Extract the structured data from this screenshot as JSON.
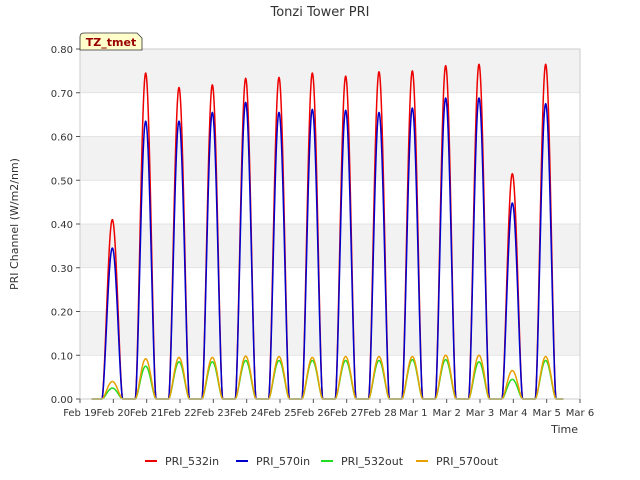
{
  "chart_data": {
    "type": "line",
    "title": "Tonzi Tower PRI",
    "xlabel": "Time",
    "ylabel": "PRI Channel (W/m2/nm)",
    "badge": "TZ_tmet",
    "ylim": [
      0,
      0.8
    ],
    "xlim": [
      0,
      15
    ],
    "y_ticks": [
      0.0,
      0.1,
      0.2,
      0.3,
      0.4,
      0.5,
      0.6,
      0.7,
      0.8
    ],
    "y_tick_labels": [
      "0.00",
      "0.10",
      "0.20",
      "0.30",
      "0.40",
      "0.50",
      "0.60",
      "0.70",
      "0.80"
    ],
    "x_ticks": [
      0,
      1,
      2,
      3,
      4,
      5,
      6,
      7,
      8,
      9,
      10,
      11,
      12,
      13,
      14,
      15
    ],
    "x_tick_labels": [
      "Feb 19",
      "Feb 20",
      "Feb 21",
      "Feb 22",
      "Feb 23",
      "Feb 24",
      "Feb 25",
      "Feb 26",
      "Feb 27",
      "Feb 28",
      "Mar 1",
      "Mar 2",
      "Mar 3",
      "Mar 4",
      "Mar 5",
      "Mar 6"
    ],
    "day_centers": [
      0.97,
      1.97,
      2.97,
      3.97,
      4.97,
      5.97,
      6.97,
      7.97,
      8.97,
      9.97,
      10.97,
      11.97,
      12.97,
      13.97
    ],
    "data_end": 14.5,
    "series": [
      {
        "name": "PRI_532in",
        "color": "#ee0000",
        "peaks": [
          0.41,
          0.745,
          0.712,
          0.718,
          0.733,
          0.735,
          0.745,
          0.738,
          0.748,
          0.75,
          0.762,
          0.765,
          0.515,
          0.765
        ]
      },
      {
        "name": "PRI_570in",
        "color": "#0000cc",
        "peaks": [
          0.345,
          0.635,
          0.635,
          0.655,
          0.678,
          0.655,
          0.662,
          0.66,
          0.655,
          0.665,
          0.688,
          0.688,
          0.448,
          0.675
        ]
      },
      {
        "name": "PRI_532out",
        "color": "#22dd22",
        "peaks": [
          0.025,
          0.075,
          0.085,
          0.085,
          0.088,
          0.088,
          0.088,
          0.088,
          0.088,
          0.09,
          0.09,
          0.085,
          0.045,
          0.088
        ]
      },
      {
        "name": "PRI_570out",
        "color": "#e8a000",
        "peaks": [
          0.04,
          0.092,
          0.095,
          0.095,
          0.098,
          0.097,
          0.095,
          0.097,
          0.097,
          0.097,
          0.1,
          0.1,
          0.065,
          0.097
        ]
      }
    ]
  }
}
